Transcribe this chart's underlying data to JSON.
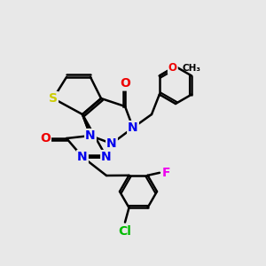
{
  "bg_color": "#e8e8e8",
  "atom_colors": {
    "S": "#cccc00",
    "N": "#0000ee",
    "O": "#ee0000",
    "F": "#ee00ee",
    "Cl": "#00bb00",
    "C": "#000000"
  },
  "bond_color": "#000000",
  "bond_width": 1.8,
  "font_size_atom": 10,
  "font_size_small": 8.5
}
